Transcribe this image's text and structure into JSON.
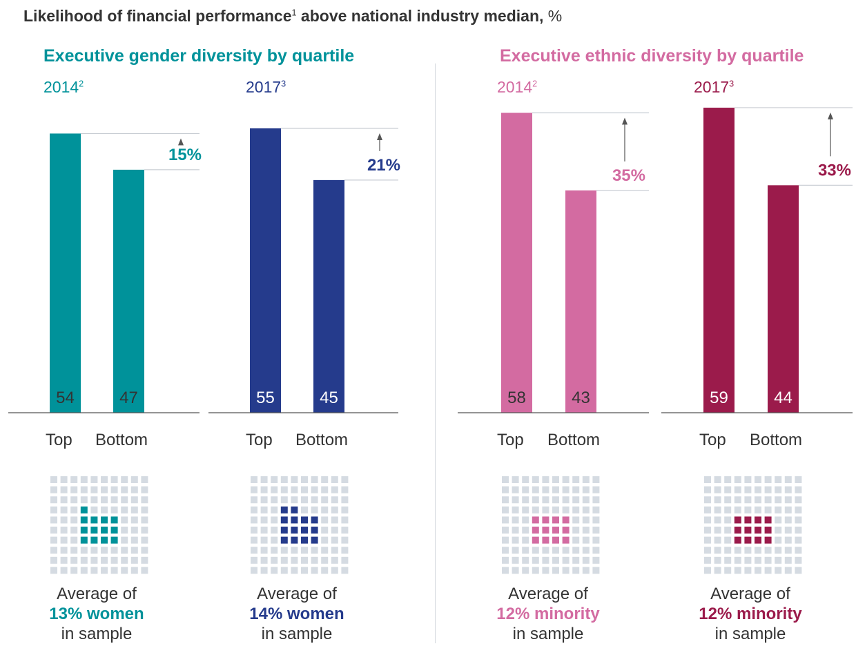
{
  "title": {
    "main": "Likelihood of financial performance",
    "footnote": "1",
    "rest": " above national industry median,",
    "unit": "%"
  },
  "sections": [
    {
      "title": "Executive gender diversity by quartile",
      "color": "#00929a"
    },
    {
      "title": "Executive ethnic diversity by quartile",
      "color": "#d36ba1"
    }
  ],
  "chart_data": [
    {
      "type": "bar",
      "section": "Executive gender diversity by quartile",
      "year": "2014",
      "footnote": "2",
      "categories": [
        "Top",
        "Bottom"
      ],
      "values": [
        54,
        47
      ],
      "value_labels": [
        "54",
        "47"
      ],
      "difference_label": "15%",
      "bar_color": "#00929a",
      "value_text_color": "#333333",
      "title_color": "#00929a",
      "highlight_color": "#00929a",
      "sample": {
        "pre": "Average of",
        "highlight": "13% women",
        "post": "in sample",
        "squares": 13,
        "total_squares": 100
      }
    },
    {
      "type": "bar",
      "section": "Executive gender diversity by quartile",
      "year": "2017",
      "footnote": "3",
      "categories": [
        "Top",
        "Bottom"
      ],
      "values": [
        55,
        45
      ],
      "value_labels": [
        "55",
        "45"
      ],
      "difference_label": "21%",
      "bar_color": "#253b8c",
      "value_text_color": "#ffffff",
      "title_color": "#253b8c",
      "highlight_color": "#253b8c",
      "sample": {
        "pre": "Average of",
        "highlight": "14% women",
        "post": "in sample",
        "squares": 14,
        "total_squares": 100
      }
    },
    {
      "type": "bar",
      "section": "Executive ethnic diversity by quartile",
      "year": "2014",
      "footnote": "2",
      "categories": [
        "Top",
        "Bottom"
      ],
      "values": [
        58,
        43
      ],
      "value_labels": [
        "58",
        "43"
      ],
      "difference_label": "35%",
      "bar_color": "#d36ba1",
      "value_text_color": "#333333",
      "title_color": "#d36ba1",
      "highlight_color": "#d36ba1",
      "sample": {
        "pre": "Average of",
        "highlight": "12% minority",
        "post": "in sample",
        "squares": 12,
        "total_squares": 100
      }
    },
    {
      "type": "bar",
      "section": "Executive ethnic diversity by quartile",
      "year": "2017",
      "footnote": "3",
      "categories": [
        "Top",
        "Bottom"
      ],
      "values": [
        59,
        44
      ],
      "value_labels": [
        "59",
        "44"
      ],
      "difference_label": "33%",
      "bar_color": "#9b1b4b",
      "value_text_color": "#ffffff",
      "title_color": "#9b1b4b",
      "highlight_color": "#9b1b4b",
      "sample": {
        "pre": "Average of",
        "highlight": "12% minority",
        "post": "in sample",
        "squares": 12,
        "total_squares": 100
      }
    }
  ],
  "colors": {
    "text": "#333333",
    "axis": "#555555",
    "guide": "#c9ced4",
    "grid_square": "#d5dbe2",
    "arrow": "#555555"
  }
}
